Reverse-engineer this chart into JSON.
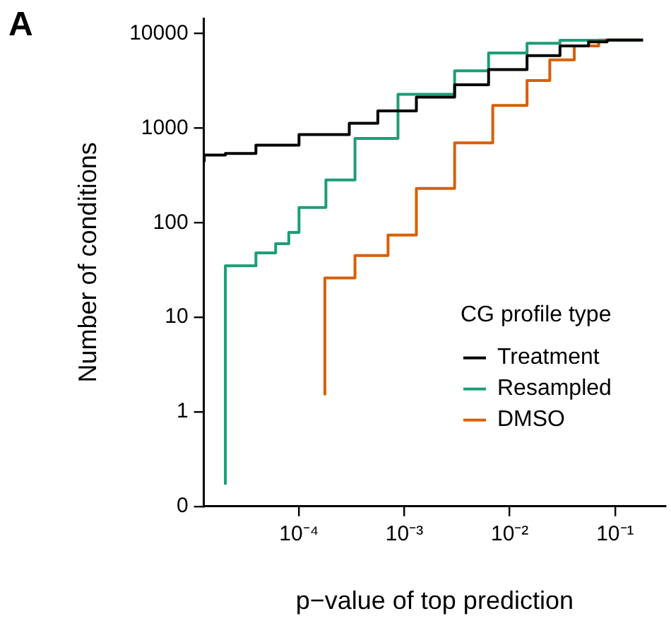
{
  "chart_data": {
    "type": "step",
    "xlabel": "p−value of top prediction",
    "ylabel": "Number of conditions",
    "legend_title": "CG profile type",
    "annotations": [
      "A"
    ],
    "log": "xy",
    "grid": false,
    "legend": "right",
    "line_style": "solid",
    "marker": "none",
    "xlim": [
      1.25e-05,
      0.3
    ],
    "xticks": [
      {
        "value": 0.0001,
        "label": "10⁻⁴"
      },
      {
        "value": 0.001,
        "label": "10⁻³"
      },
      {
        "value": 0.01,
        "label": "10⁻²"
      },
      {
        "value": 0.1,
        "label": "10⁻¹"
      }
    ],
    "ylim": [
      0.1,
      14500
    ],
    "yticks": [
      {
        "value": 0.1,
        "label": "0"
      },
      1,
      10,
      100,
      1000,
      10000
    ],
    "series": [
      {
        "name": "Treatment",
        "color": "#000000",
        "x": [
          1.26e-05,
          2e-05,
          3.9e-05,
          0.0001,
          0.0003,
          0.00056,
          0.0013,
          0.003,
          0.0063,
          0.0146,
          0.03,
          0.056,
          0.084,
          0.184
        ],
        "values": [
          437,
          519,
          540,
          660,
          857,
          1125,
          1520,
          2130,
          2880,
          4170,
          5850,
          7400,
          8200,
          8540
        ]
      },
      {
        "name": "Resampled",
        "color": "#1b9e77",
        "x": [
          2e-05,
          2e-05,
          3.9e-05,
          6e-05,
          8e-05,
          0.0001,
          0.00018,
          0.00034,
          0.00087,
          0.003,
          0.0063,
          0.0146,
          0.03,
          0.084,
          0.184
        ],
        "values": [
          0.17,
          22,
          35,
          48,
          60,
          79,
          145,
          283,
          780,
          2280,
          4050,
          6250,
          7900,
          8500,
          8540
        ]
      },
      {
        "name": "DMSO",
        "color": "#d95f02",
        "x": [
          0.000176,
          0.000176,
          0.00034,
          0.0007,
          0.0013,
          0.003,
          0.0069,
          0.0146,
          0.024,
          0.041,
          0.07,
          0.184
        ],
        "values": [
          1.5,
          20,
          26,
          45,
          74,
          230,
          700,
          1740,
          3190,
          5280,
          7400,
          8540
        ]
      }
    ]
  }
}
